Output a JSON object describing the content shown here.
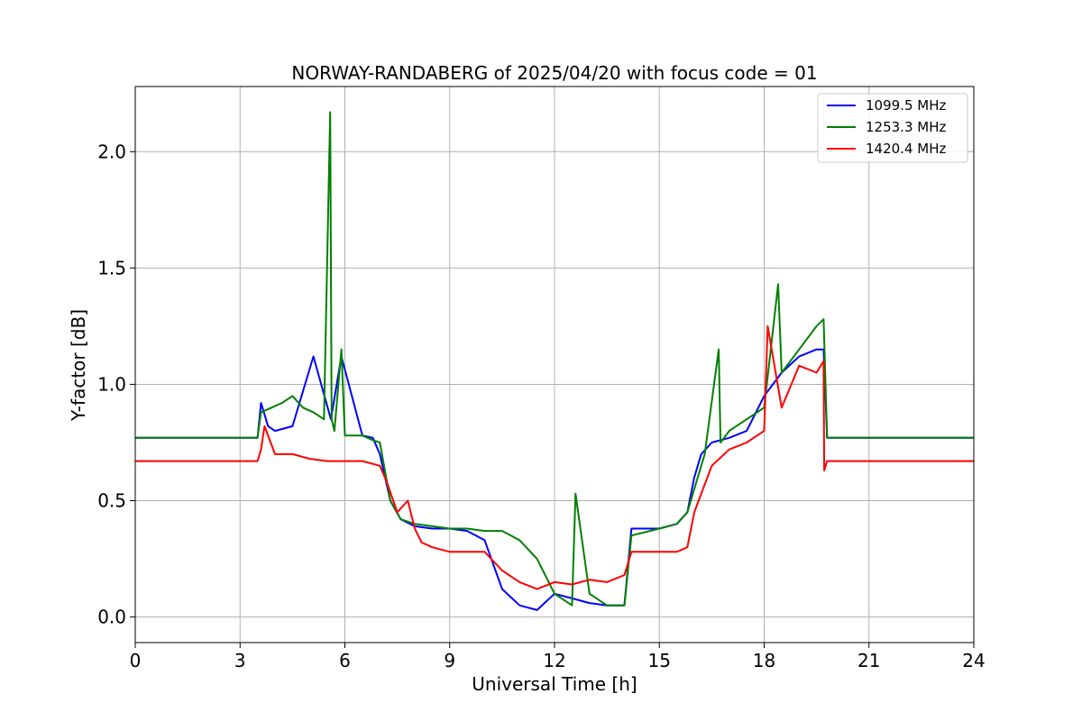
{
  "chart_data": {
    "type": "line",
    "title": "NORWAY-RANDABERG of 2025/04/20 with focus code = 01",
    "xlabel": "Universal Time [h]",
    "ylabel": "Y-factor [dB]",
    "xlim": [
      0,
      24
    ],
    "ylim": [
      -0.11,
      2.28
    ],
    "xticks": [
      0,
      3,
      6,
      9,
      12,
      15,
      18,
      21,
      24
    ],
    "yticks": [
      0.0,
      0.5,
      1.0,
      1.5,
      2.0
    ],
    "xtick_labels": [
      "0",
      "3",
      "6",
      "9",
      "12",
      "15",
      "18",
      "21",
      "24"
    ],
    "ytick_labels": [
      "0.0",
      "0.5",
      "1.0",
      "1.5",
      "2.0"
    ],
    "grid": true,
    "legend_position": "top-right",
    "series": [
      {
        "name": "1099.5 MHz",
        "color": "#0000ff",
        "x": [
          0,
          3.5,
          3.6,
          3.8,
          4.0,
          4.5,
          5.1,
          5.6,
          5.9,
          6.5,
          6.8,
          7.0,
          7.3,
          7.6,
          8.0,
          8.5,
          9.0,
          9.5,
          10.0,
          10.5,
          11.0,
          11.5,
          12.0,
          12.5,
          13.0,
          13.5,
          14.0,
          14.2,
          15.0,
          15.5,
          15.8,
          16.0,
          16.2,
          16.5,
          17.0,
          17.5,
          18.0,
          18.5,
          19.0,
          19.5,
          19.7,
          19.8,
          21.0,
          22.0,
          23.0,
          23.6,
          24.0
        ],
        "y": [
          0.77,
          0.77,
          0.92,
          0.82,
          0.8,
          0.82,
          1.12,
          0.85,
          1.12,
          0.78,
          0.77,
          0.7,
          0.5,
          0.42,
          0.39,
          0.38,
          0.38,
          0.37,
          0.33,
          0.12,
          0.05,
          0.03,
          0.1,
          0.08,
          0.06,
          0.05,
          0.05,
          0.38,
          0.38,
          0.4,
          0.45,
          0.6,
          0.7,
          0.75,
          0.77,
          0.8,
          0.95,
          1.05,
          1.12,
          1.15,
          1.15,
          0.77,
          0.77,
          0.77,
          0.77,
          0.77,
          0.77
        ]
      },
      {
        "name": "1253.3 MHz",
        "color": "#008000",
        "x": [
          0,
          3.5,
          3.6,
          3.9,
          4.2,
          4.5,
          4.8,
          5.1,
          5.4,
          5.58,
          5.62,
          5.7,
          5.9,
          6.0,
          6.5,
          6.8,
          7.0,
          7.3,
          7.6,
          8.0,
          8.5,
          9.0,
          9.5,
          10.0,
          10.5,
          11.0,
          11.5,
          12.0,
          12.5,
          12.6,
          13.0,
          13.5,
          14.0,
          14.2,
          15.0,
          15.5,
          15.8,
          16.0,
          16.3,
          16.7,
          16.75,
          17.0,
          17.5,
          18.0,
          18.4,
          18.5,
          19.0,
          19.5,
          19.7,
          19.8,
          21.0,
          22.0,
          23.0,
          23.6,
          24.0
        ],
        "y": [
          0.77,
          0.77,
          0.88,
          0.9,
          0.92,
          0.95,
          0.9,
          0.88,
          0.85,
          2.17,
          0.85,
          0.8,
          1.15,
          0.78,
          0.78,
          0.76,
          0.75,
          0.5,
          0.42,
          0.4,
          0.39,
          0.38,
          0.38,
          0.37,
          0.37,
          0.33,
          0.25,
          0.1,
          0.05,
          0.53,
          0.1,
          0.05,
          0.05,
          0.35,
          0.38,
          0.4,
          0.45,
          0.55,
          0.7,
          1.15,
          0.75,
          0.8,
          0.85,
          0.9,
          1.43,
          1.05,
          1.15,
          1.25,
          1.28,
          0.77,
          0.77,
          0.77,
          0.77,
          0.77,
          0.77
        ]
      },
      {
        "name": "1420.4 MHz",
        "color": "#ff0000",
        "x": [
          0,
          3.5,
          3.6,
          3.7,
          4.0,
          4.5,
          5.0,
          5.5,
          6.0,
          6.5,
          7.0,
          7.2,
          7.5,
          7.8,
          8.0,
          8.2,
          8.5,
          9.0,
          10.0,
          10.5,
          11.0,
          11.5,
          12.0,
          12.5,
          13.0,
          13.5,
          14.0,
          14.2,
          15.0,
          15.5,
          15.8,
          16.0,
          16.5,
          17.0,
          17.5,
          18.0,
          18.1,
          18.5,
          19.0,
          19.5,
          19.7,
          19.72,
          19.8,
          21.0,
          22.0,
          23.0,
          24.0
        ],
        "y": [
          0.67,
          0.67,
          0.72,
          0.82,
          0.7,
          0.7,
          0.68,
          0.67,
          0.67,
          0.67,
          0.65,
          0.58,
          0.45,
          0.5,
          0.38,
          0.32,
          0.3,
          0.28,
          0.28,
          0.2,
          0.15,
          0.12,
          0.15,
          0.14,
          0.16,
          0.15,
          0.18,
          0.28,
          0.28,
          0.28,
          0.3,
          0.45,
          0.65,
          0.72,
          0.75,
          0.8,
          1.25,
          0.9,
          1.08,
          1.05,
          1.1,
          0.63,
          0.67,
          0.67,
          0.67,
          0.67,
          0.67
        ]
      }
    ]
  }
}
